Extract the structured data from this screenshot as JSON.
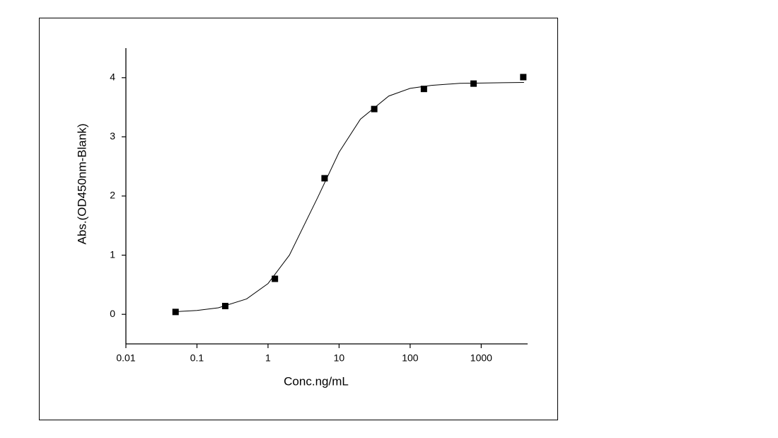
{
  "chart_data": {
    "type": "scatter",
    "x_label": "Conc.ng/mL",
    "y_label": "Abs.(OD450nm-Blank)",
    "x_log": true,
    "xlim": [
      0.01,
      4500
    ],
    "xticks": [
      0.01,
      0.1,
      1,
      10,
      100,
      1000
    ],
    "ylim": [
      -0.5,
      4.5
    ],
    "yticks": [
      0,
      1,
      2,
      3,
      4
    ],
    "series": [
      {
        "type": "scatter",
        "color": "#000000",
        "x": [
          0.05,
          0.25,
          1.25,
          6.25,
          31.25,
          156.25,
          781.25,
          3906.25
        ],
        "values": [
          0.04,
          0.14,
          0.6,
          2.3,
          3.47,
          3.81,
          3.9,
          4.01
        ]
      },
      {
        "type": "line",
        "color": "#000000",
        "x": [
          0.05,
          0.1,
          0.2,
          0.5,
          1,
          2,
          5,
          10,
          20,
          50,
          100,
          200,
          500,
          1000,
          2000,
          4000
        ],
        "values": [
          0.045,
          0.065,
          0.11,
          0.26,
          0.52,
          1.0,
          1.975,
          2.74,
          3.3,
          3.69,
          3.82,
          3.87,
          3.905,
          3.91,
          3.915,
          3.92
        ]
      }
    ]
  }
}
